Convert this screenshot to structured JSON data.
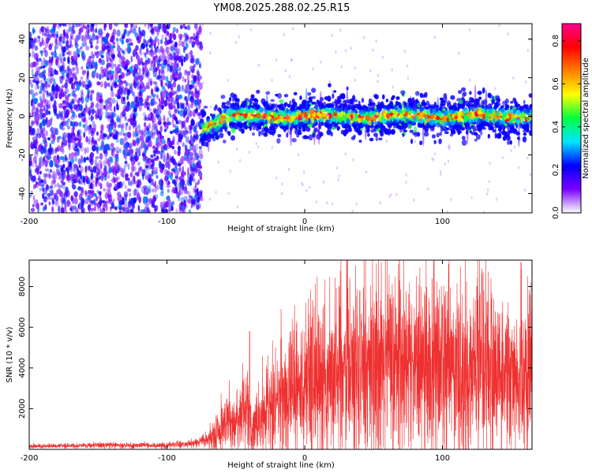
{
  "title": "YM08.2025.288.02.25.R15",
  "chart_data": [
    {
      "type": "heatmap",
      "title": "YM08.2025.288.02.25.R15",
      "xlabel": "Height of straight line (km)",
      "ylabel": "Frequency (Hz)",
      "xlim": [
        -200,
        165
      ],
      "ylim": [
        -50,
        48
      ],
      "xticks": [
        -200,
        -100,
        0,
        100
      ],
      "xtick_labels": [
        "-200",
        "-100",
        "0",
        "100"
      ],
      "yticks": [
        -40,
        -20,
        0,
        20,
        40
      ],
      "ytick_labels": [
        "-40",
        "-20",
        "0",
        "20",
        "40"
      ],
      "description_of_data": {
        "noise_region_x": [
          -200,
          -75
        ],
        "noise_amplitude_range": [
          0.0,
          0.25
        ],
        "signal_band_center_hz": 0,
        "signal_band_halfwidth_hz": 5,
        "signal_peak_amplitude": 0.9,
        "transition_x": -75,
        "band_start_offset_hz": -7
      },
      "colorbar": {
        "label": "Normalized spectral amplitude",
        "range": [
          0.0,
          0.88
        ],
        "ticks": [
          0.0,
          0.2,
          0.4,
          0.6,
          0.8
        ],
        "tick_labels": [
          "0.0",
          "0.2",
          "0.4",
          "0.6",
          "0.8"
        ],
        "colormap": [
          "#ffffff",
          "#7a00ff",
          "#0000ff",
          "#00e5ff",
          "#00ff40",
          "#ffff00",
          "#ff7f00",
          "#ff0000",
          "#ff0090"
        ]
      }
    },
    {
      "type": "line",
      "xlabel": "Height of straight line (km)",
      "ylabel": "SNR (10 * v/v)",
      "xlim": [
        -200,
        165
      ],
      "ylim": [
        0,
        9300
      ],
      "xticks": [
        -200,
        -100,
        0,
        100
      ],
      "xtick_labels": [
        "-200",
        "-100",
        "0",
        "100"
      ],
      "yticks": [
        2000,
        4000,
        6000,
        8000
      ],
      "ytick_labels": [
        "2000",
        "4000",
        "6000",
        "8000"
      ],
      "color": "#ef3030",
      "series": [
        {
          "name": "SNR",
          "envelope_x": [
            -200,
            -150,
            -100,
            -80,
            -70,
            -55,
            -48,
            -42,
            -38,
            -30,
            -20,
            -10,
            0,
            10,
            20,
            30,
            50,
            80,
            100,
            120,
            140,
            165
          ],
          "envelope_y": [
            150,
            200,
            200,
            300,
            500,
            1400,
            1500,
            2000,
            1000,
            1800,
            2500,
            3000,
            3200,
            3500,
            3800,
            4000,
            4300,
            4300,
            4200,
            3900,
            3700,
            3700
          ],
          "peak_x": [
            -40,
            -17,
            25,
            31,
            40,
            62,
            100,
            125,
            157
          ],
          "peak_y": [
            5800,
            5500,
            8000,
            9300,
            7800,
            7400,
            7000,
            8000,
            9200
          ]
        }
      ]
    }
  ]
}
